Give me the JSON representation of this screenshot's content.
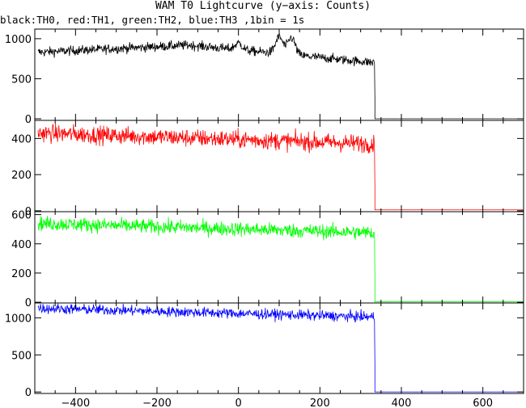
{
  "title": "WAM T0 Lightcurve (y−axis: Counts)",
  "subtitle": "black:TH0, red:TH1, green:TH2, blue:TH3 ,1bin = 1s",
  "chart_data": [
    {
      "type": "line",
      "series": [
        {
          "name": "TH0",
          "color": "#000000"
        }
      ],
      "xlim": [
        -500,
        700
      ],
      "ylim": [
        -20,
        1120
      ],
      "y_ticks": [
        0,
        500,
        1000
      ],
      "trend": {
        "start": 830,
        "peak": 920,
        "end": 700,
        "noise": 30
      },
      "features": [
        {
          "x": 0,
          "y": 960
        },
        {
          "x": 100,
          "y": 1060
        },
        {
          "x": 130,
          "y": 1050
        }
      ],
      "cutoff_x": 335,
      "post_cutoff_level": 0
    },
    {
      "type": "line",
      "series": [
        {
          "name": "TH1",
          "color": "#ff0000"
        }
      ],
      "xlim": [
        -500,
        700
      ],
      "ylim": [
        -5,
        500
      ],
      "y_ticks": [
        0,
        200,
        400
      ],
      "trend": {
        "start": 430,
        "peak": 430,
        "end": 370,
        "noise": 25
      },
      "cutoff_x": 335,
      "post_cutoff_level": 5
    },
    {
      "type": "line",
      "series": [
        {
          "name": "TH2",
          "color": "#00ff00"
        }
      ],
      "xlim": [
        -500,
        700
      ],
      "ylim": [
        -5,
        620
      ],
      "y_ticks": [
        0,
        200,
        400,
        600
      ],
      "trend": {
        "start": 540,
        "peak": 540,
        "end": 475,
        "noise": 25
      },
      "cutoff_x": 335,
      "post_cutoff_level": 3
    },
    {
      "type": "line",
      "series": [
        {
          "name": "TH3",
          "color": "#0000ff"
        }
      ],
      "xlim": [
        -500,
        700
      ],
      "ylim": [
        -20,
        1200
      ],
      "y_ticks": [
        0,
        500,
        1000
      ],
      "trend": {
        "start": 1130,
        "peak": 1130,
        "end": 1010,
        "noise": 35
      },
      "cutoff_x": 335,
      "post_cutoff_level": 0
    }
  ],
  "x_ticks": [
    -400,
    -200,
    0,
    200,
    400,
    600
  ],
  "x_tick_labels": [
    "−400",
    "−200",
    "0",
    "200",
    "400",
    "600"
  ]
}
